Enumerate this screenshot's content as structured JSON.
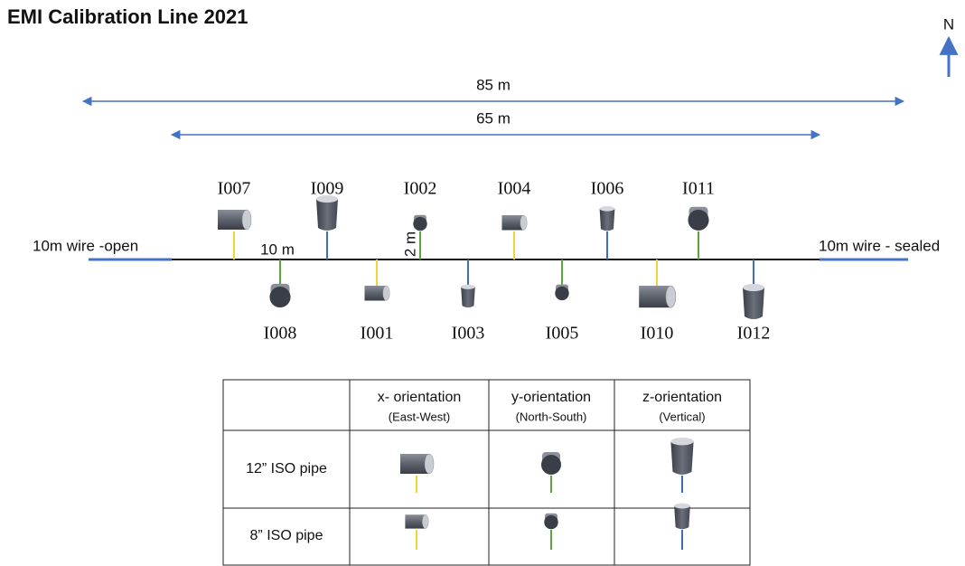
{
  "title": "EMI Calibration Line 2021",
  "north": "N",
  "dimensions": [
    "85 m",
    "65 m"
  ],
  "wire_labels": {
    "left": "10m wire -open",
    "right": "10m wire - sealed"
  },
  "spacing_labels": [
    "10 m",
    "2 m"
  ],
  "items_above": [
    "I007",
    "I009",
    "I002",
    "I004",
    "I006",
    "I011"
  ],
  "items_below": [
    "I008",
    "I001",
    "I003",
    "I005",
    "I010",
    "I012"
  ],
  "legend_table": {
    "header": [
      {
        "title": "x- orientation",
        "subtitle": "(East-West)"
      },
      {
        "title": "y-orientation",
        "subtitle": "(North-South)"
      },
      {
        "title": "z-orientation",
        "subtitle": "(Vertical)"
      }
    ],
    "rows": [
      "12” ISO pipe",
      "8” ISO pipe"
    ]
  }
}
